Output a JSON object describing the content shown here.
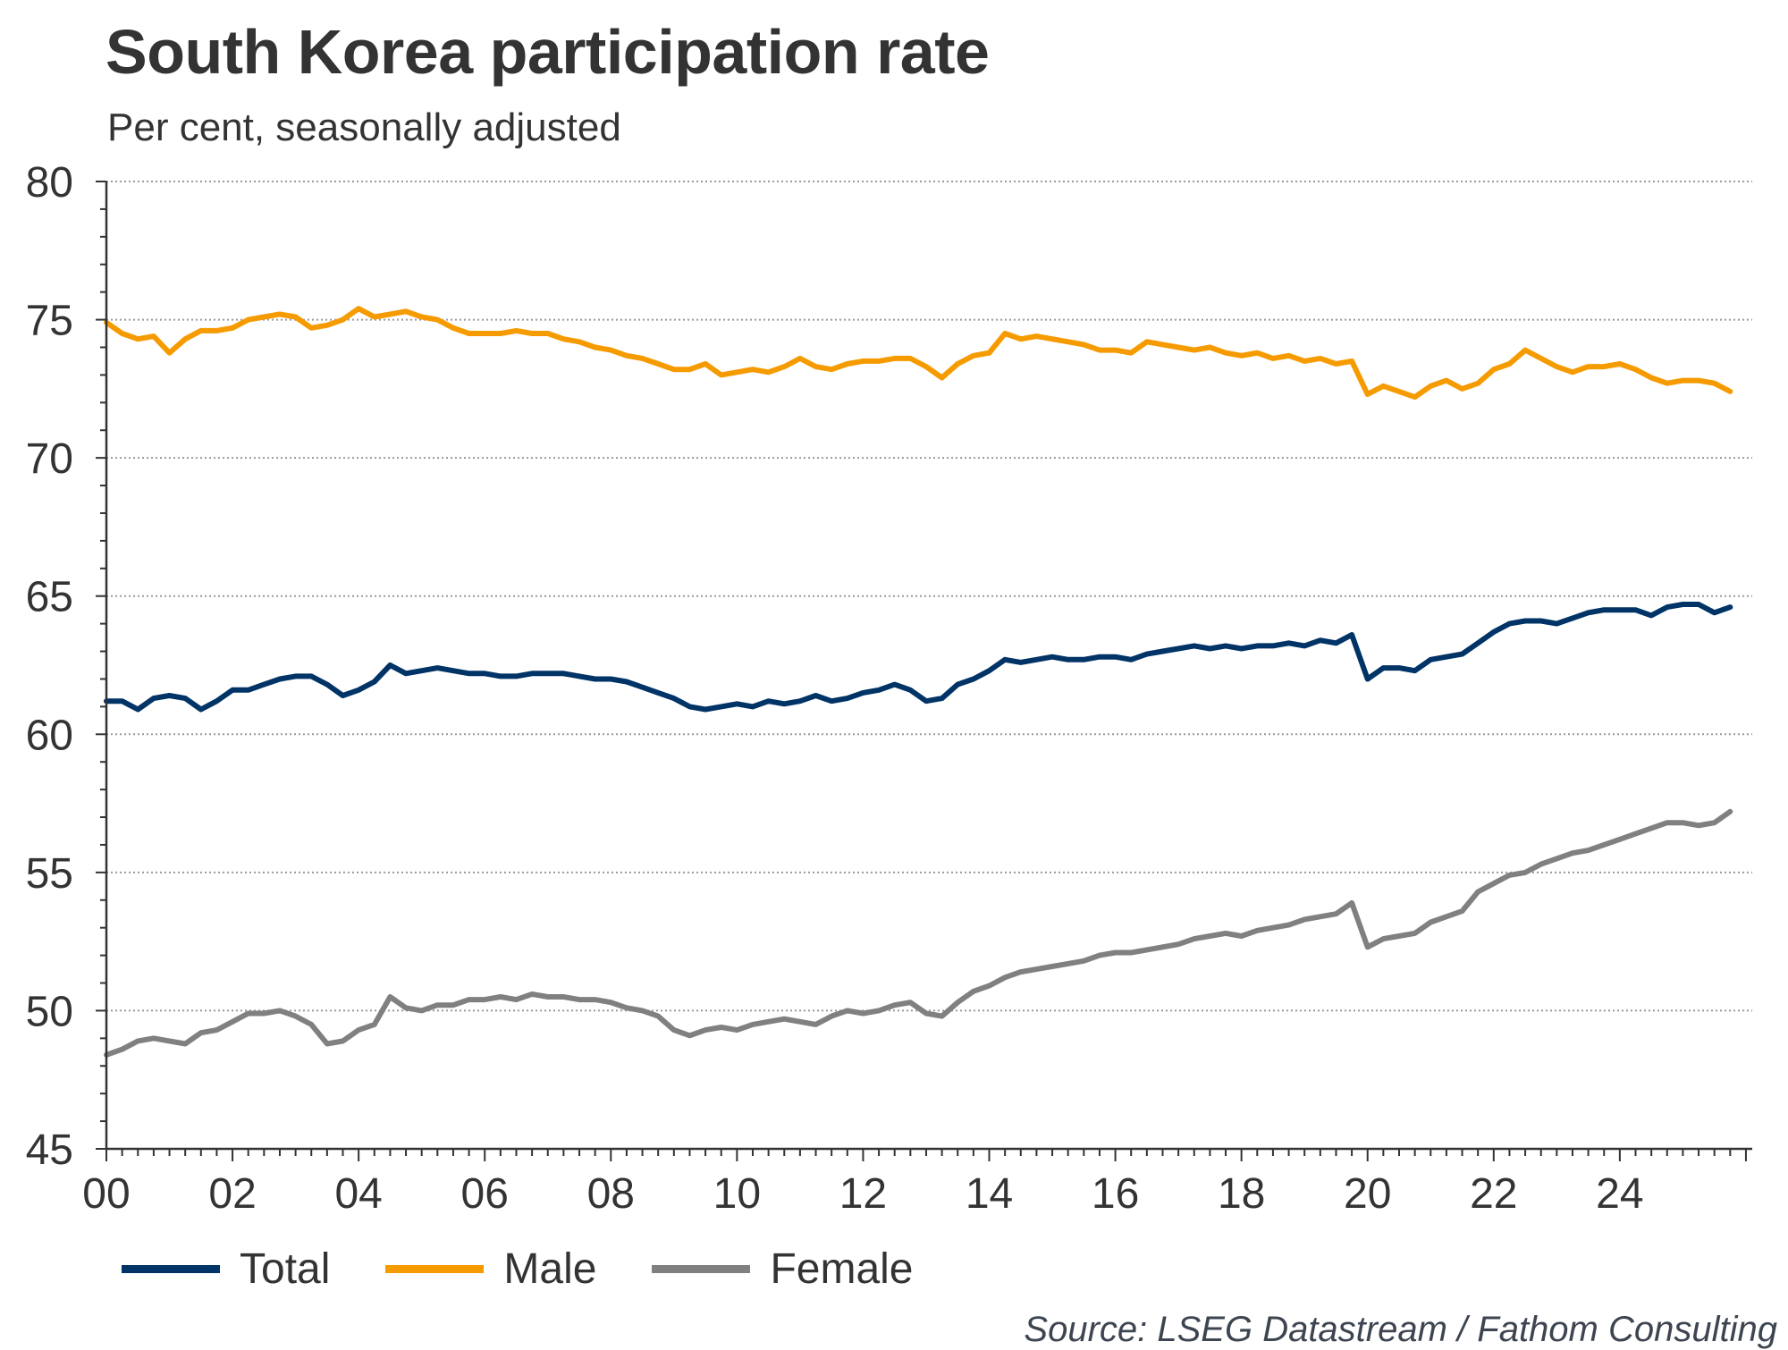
{
  "header": {
    "title": "South Korea participation rate",
    "subtitle": "Per cent, seasonally adjusted"
  },
  "footer": {
    "source": "Source: LSEG Datastream / Fathom Consulting"
  },
  "chart_data": {
    "type": "line",
    "title": "South Korea participation rate",
    "subtitle": "Per cent, seasonally adjusted",
    "xlabel": "",
    "ylabel": "Per cent",
    "ylim": [
      45,
      80
    ],
    "yticks": [
      45,
      50,
      55,
      60,
      65,
      70,
      75,
      80
    ],
    "ytick_labels": [
      "45",
      "50",
      "55",
      "60",
      "65",
      "70",
      "75",
      "80"
    ],
    "xlim": [
      2000,
      2026.1
    ],
    "xticks": [
      2000,
      2002,
      2004,
      2006,
      2008,
      2010,
      2012,
      2014,
      2016,
      2018,
      2020,
      2022,
      2024
    ],
    "xtick_labels": [
      "00",
      "02",
      "04",
      "06",
      "08",
      "10",
      "12",
      "14",
      "16",
      "18",
      "20",
      "22",
      "24"
    ],
    "grid": "horizontal dotted",
    "legend": "bottom",
    "x_start": 2000.0,
    "x_step": 0.25,
    "series": [
      {
        "name": "Total",
        "color": "#003366",
        "values": [
          61.2,
          61.2,
          60.9,
          61.3,
          61.4,
          61.3,
          60.9,
          61.2,
          61.6,
          61.6,
          61.8,
          62.0,
          62.1,
          62.1,
          61.8,
          61.4,
          61.6,
          61.9,
          62.5,
          62.2,
          62.3,
          62.4,
          62.3,
          62.2,
          62.2,
          62.1,
          62.1,
          62.2,
          62.2,
          62.2,
          62.1,
          62.0,
          62.0,
          61.9,
          61.7,
          61.5,
          61.3,
          61.0,
          60.9,
          61.0,
          61.1,
          61.0,
          61.2,
          61.1,
          61.2,
          61.4,
          61.2,
          61.3,
          61.5,
          61.6,
          61.8,
          61.6,
          61.2,
          61.3,
          61.8,
          62.0,
          62.3,
          62.7,
          62.6,
          62.7,
          62.8,
          62.7,
          62.7,
          62.8,
          62.8,
          62.7,
          62.9,
          63.0,
          63.1,
          63.2,
          63.1,
          63.2,
          63.1,
          63.2,
          63.2,
          63.3,
          63.2,
          63.4,
          63.3,
          63.6,
          62.0,
          62.4,
          62.4,
          62.3,
          62.7,
          62.8,
          62.9,
          63.3,
          63.7,
          64.0,
          64.1,
          64.1,
          64.0,
          64.2,
          64.4,
          64.5,
          64.5,
          64.5,
          64.3,
          64.6,
          64.7,
          64.7,
          64.4,
          64.6
        ]
      },
      {
        "name": "Male",
        "color": "#F59B00",
        "values": [
          74.9,
          74.5,
          74.3,
          74.4,
          73.8,
          74.3,
          74.6,
          74.6,
          74.7,
          75.0,
          75.1,
          75.2,
          75.1,
          74.7,
          74.8,
          75.0,
          75.4,
          75.1,
          75.2,
          75.3,
          75.1,
          75.0,
          74.7,
          74.5,
          74.5,
          74.5,
          74.6,
          74.5,
          74.5,
          74.3,
          74.2,
          74.0,
          73.9,
          73.7,
          73.6,
          73.4,
          73.2,
          73.2,
          73.4,
          73.0,
          73.1,
          73.2,
          73.1,
          73.3,
          73.6,
          73.3,
          73.2,
          73.4,
          73.5,
          73.5,
          73.6,
          73.6,
          73.3,
          72.9,
          73.4,
          73.7,
          73.8,
          74.5,
          74.3,
          74.4,
          74.3,
          74.2,
          74.1,
          73.9,
          73.9,
          73.8,
          74.2,
          74.1,
          74.0,
          73.9,
          74.0,
          73.8,
          73.7,
          73.8,
          73.6,
          73.7,
          73.5,
          73.6,
          73.4,
          73.5,
          72.3,
          72.6,
          72.4,
          72.2,
          72.6,
          72.8,
          72.5,
          72.7,
          73.2,
          73.4,
          73.9,
          73.6,
          73.3,
          73.1,
          73.3,
          73.3,
          73.4,
          73.2,
          72.9,
          72.7,
          72.8,
          72.8,
          72.7,
          72.4
        ]
      },
      {
        "name": "Female",
        "color": "#808080",
        "values": [
          48.4,
          48.6,
          48.9,
          49.0,
          48.9,
          48.8,
          49.2,
          49.3,
          49.6,
          49.9,
          49.9,
          50.0,
          49.8,
          49.5,
          48.8,
          48.9,
          49.3,
          49.5,
          50.5,
          50.1,
          50.0,
          50.2,
          50.2,
          50.4,
          50.4,
          50.5,
          50.4,
          50.6,
          50.5,
          50.5,
          50.4,
          50.4,
          50.3,
          50.1,
          50.0,
          49.8,
          49.3,
          49.1,
          49.3,
          49.4,
          49.3,
          49.5,
          49.6,
          49.7,
          49.6,
          49.5,
          49.8,
          50.0,
          49.9,
          50.0,
          50.2,
          50.3,
          49.9,
          49.8,
          50.3,
          50.7,
          50.9,
          51.2,
          51.4,
          51.5,
          51.6,
          51.7,
          51.8,
          52.0,
          52.1,
          52.1,
          52.2,
          52.3,
          52.4,
          52.6,
          52.7,
          52.8,
          52.7,
          52.9,
          53.0,
          53.1,
          53.3,
          53.4,
          53.5,
          53.9,
          52.3,
          52.6,
          52.7,
          52.8,
          53.2,
          53.4,
          53.6,
          54.3,
          54.6,
          54.9,
          55.0,
          55.3,
          55.5,
          55.7,
          55.8,
          56.0,
          56.2,
          56.4,
          56.6,
          56.8,
          56.8,
          56.7,
          56.8,
          57.2
        ]
      }
    ]
  }
}
